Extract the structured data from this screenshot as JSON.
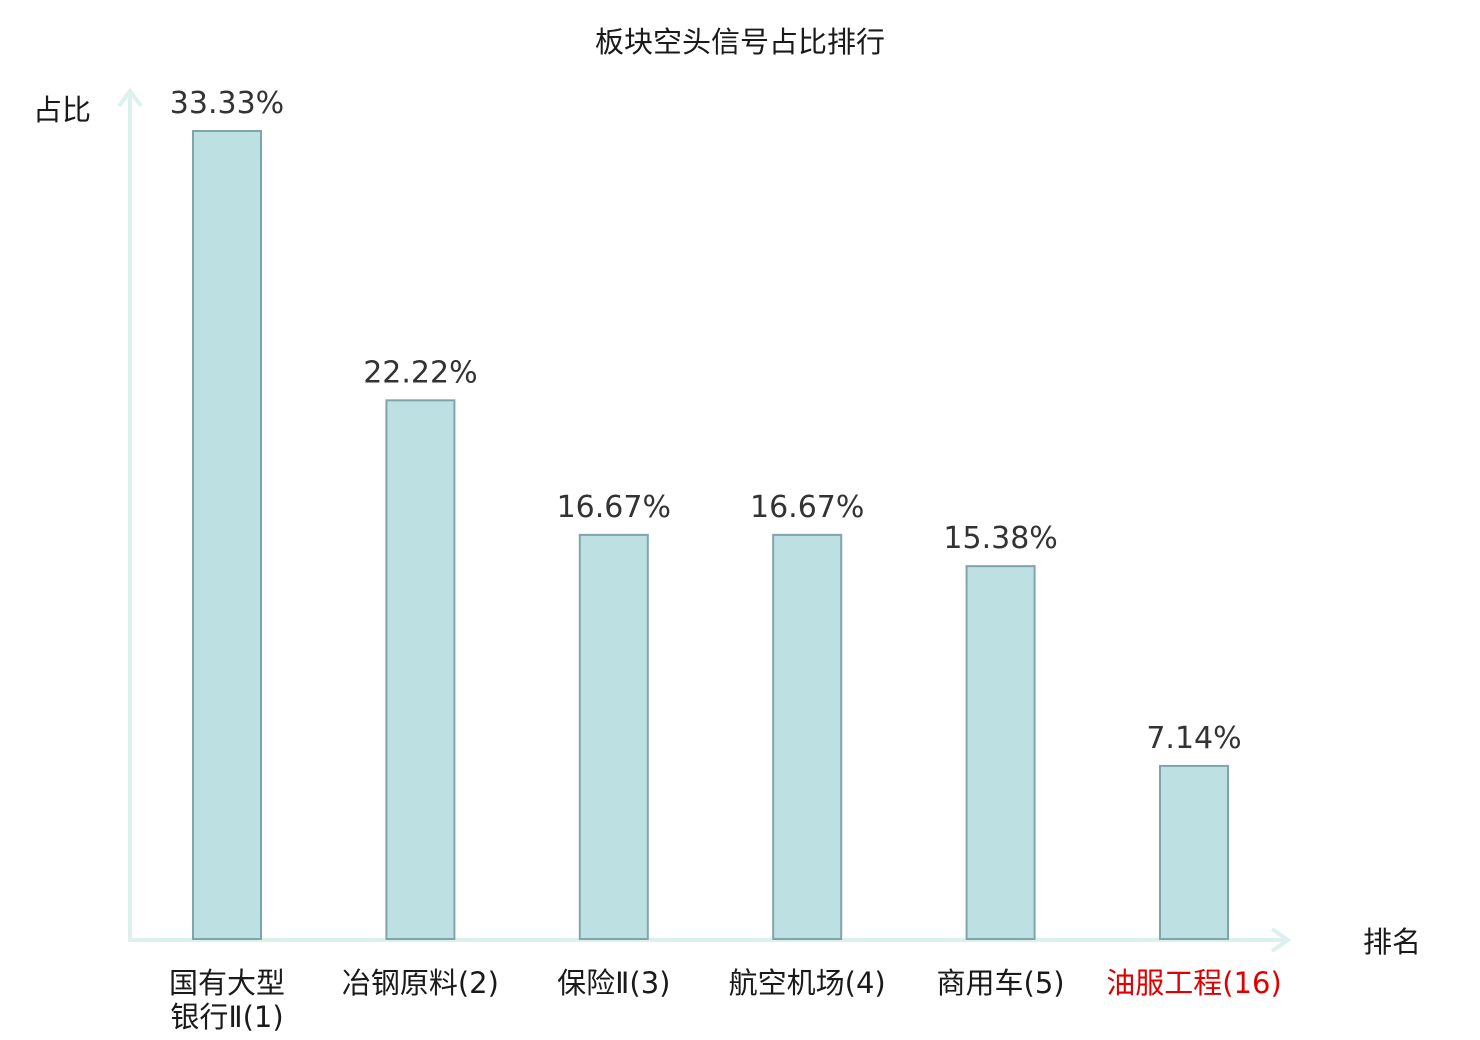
{
  "chart_data": {
    "type": "bar",
    "title": "板块空头信号占比排行",
    "xlabel": "排名",
    "ylabel": "占比",
    "ylim": [
      0,
      35
    ],
    "grid": false,
    "categories": [
      {
        "lines": [
          "国有大型",
          "银行Ⅱ(1)"
        ],
        "highlight": false
      },
      {
        "lines": [
          "冶钢原料(2)"
        ],
        "highlight": false
      },
      {
        "lines": [
          "保险Ⅱ(3)"
        ],
        "highlight": false
      },
      {
        "lines": [
          "航空机场(4)"
        ],
        "highlight": false
      },
      {
        "lines": [
          "商用车(5)"
        ],
        "highlight": false
      },
      {
        "lines": [
          "油服工程(16)"
        ],
        "highlight": true
      }
    ],
    "values": [
      33.33,
      22.22,
      16.67,
      16.67,
      15.38,
      7.14
    ],
    "value_labels": [
      "33.33%",
      "22.22%",
      "16.67%",
      "16.67%",
      "15.38%",
      "7.14%"
    ],
    "colors": {
      "bar_fill": "#bde0e3",
      "bar_stroke": "#7fa5a8",
      "axis": "#dcf0ee",
      "highlight_text": "#e00000"
    }
  }
}
